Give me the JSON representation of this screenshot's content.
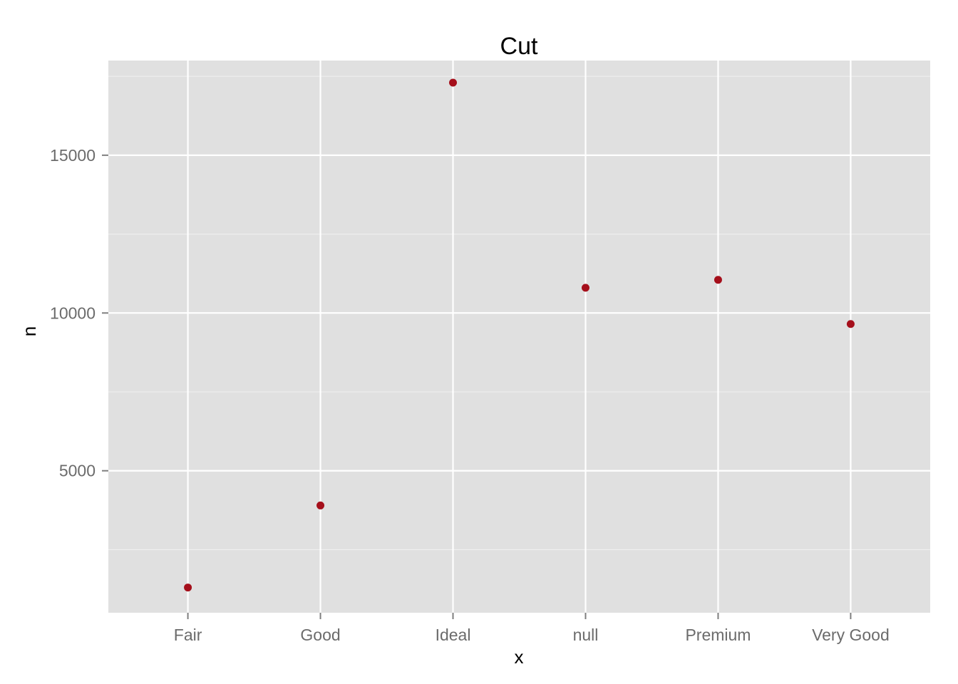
{
  "chart_data": {
    "type": "scatter",
    "title": "Cut",
    "xlabel": "x",
    "ylabel": "n",
    "categories": [
      "Fair",
      "Good",
      "Ideal",
      "null",
      "Premium",
      "Very Good"
    ],
    "values": [
      1300,
      3900,
      17300,
      10800,
      11050,
      9650
    ],
    "yticks": [
      "5000",
      "10000",
      "15000"
    ],
    "ylim": [
      500,
      18000
    ],
    "grid": true,
    "point_color": "#a50f1b",
    "panel_color": "#e0e0e0",
    "grid_color": "#ffffff"
  }
}
